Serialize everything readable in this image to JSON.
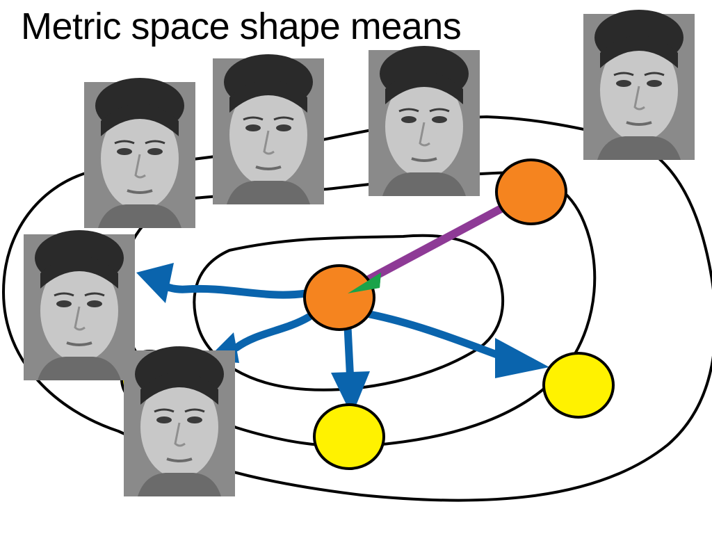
{
  "slide": {
    "title": "Metric space shape means"
  },
  "colors": {
    "contour": "#000000",
    "arrow_blue": "#0a64ad",
    "arrow_purple": "#8e3a96",
    "arrow_head_green": "#1aa34a",
    "node_orange": "#f5841f",
    "node_yellow": "#fff200",
    "node_outline": "#000000"
  },
  "diagram": {
    "contours": [
      "outer-contour",
      "middle-contour",
      "inner-contour"
    ],
    "nodes": [
      {
        "id": "center-node",
        "color": "orange"
      },
      {
        "id": "upper-right-node",
        "color": "orange"
      },
      {
        "id": "bottom-node",
        "color": "yellow"
      },
      {
        "id": "right-node",
        "color": "yellow"
      },
      {
        "id": "left-hidden-node",
        "color": "yellow"
      }
    ],
    "edges": [
      {
        "from": "upper-right-node",
        "to": "center-node",
        "color": "purple"
      },
      {
        "from": "center-node",
        "to": "face-left-middle",
        "color": "blue"
      },
      {
        "from": "center-node",
        "to": "face-bottom-left",
        "color": "blue"
      },
      {
        "from": "center-node",
        "to": "bottom-node",
        "color": "blue"
      },
      {
        "from": "center-node",
        "to": "right-node",
        "color": "blue"
      }
    ],
    "faces": [
      "face-top-left",
      "face-top-2",
      "face-top-3",
      "face-top-right",
      "face-left-middle",
      "face-bottom-left"
    ]
  }
}
